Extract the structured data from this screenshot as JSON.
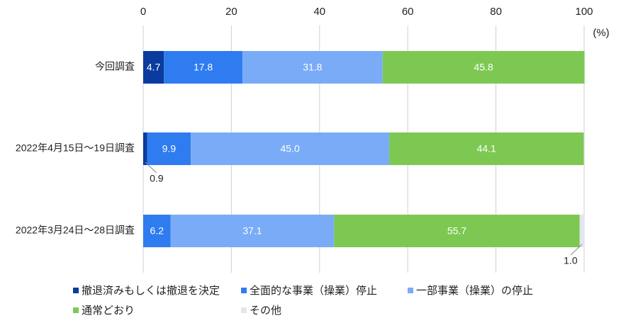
{
  "chart_data": {
    "type": "stacked-bar-horizontal",
    "unit": "(%)",
    "categories": [
      "今回調査",
      "2022年4月15日～19日調査",
      "2022年3月24日～28日調査"
    ],
    "series": [
      {
        "name": "撤退済みもしくは撤退を決定",
        "color": "#0b3b9e",
        "values": [
          4.7,
          0.9,
          null
        ],
        "value_labels": [
          "4.7",
          "0.9",
          null
        ]
      },
      {
        "name": "全面的な事業（操業）停止",
        "color": "#2f7cf0",
        "values": [
          17.8,
          9.9,
          6.2
        ],
        "value_labels": [
          "17.8",
          "9.9",
          "6.2"
        ]
      },
      {
        "name": "一部事業（操業）の停止",
        "color": "#7aabf7",
        "values": [
          31.8,
          45.0,
          37.1
        ],
        "value_labels": [
          "31.8",
          "45.0",
          "37.1"
        ]
      },
      {
        "name": "通常どおり",
        "color": "#7dc852",
        "values": [
          45.8,
          44.1,
          55.7
        ],
        "value_labels": [
          "45.8",
          "44.1",
          "55.7"
        ]
      },
      {
        "name": "その他",
        "color": "#e4e6ee",
        "values": [
          null,
          null,
          1.0
        ],
        "value_labels": [
          null,
          null,
          "1.0"
        ]
      }
    ],
    "xlim": [
      0,
      100
    ],
    "xticks": [
      0,
      20,
      40,
      60,
      80,
      100
    ],
    "grid": true
  }
}
